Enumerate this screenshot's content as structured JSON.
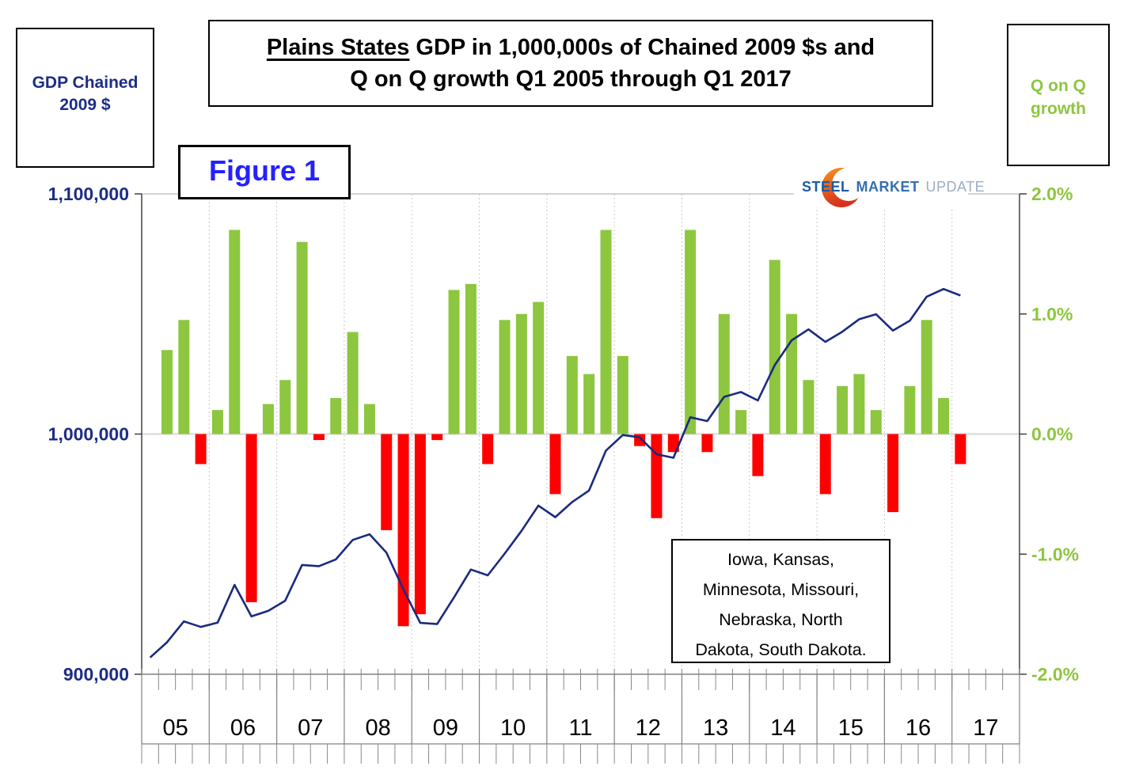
{
  "header": {
    "left_box": "GDP Chained\n2009 $",
    "right_box": "Q on Q\ngrowth",
    "figure_label": "Figure 1"
  },
  "title": {
    "part1": "Plains States",
    "part2": " GDP in 1,000,000s of Chained 2009 $s and",
    "line2": "Q on Q growth Q1 2005 through Q1 2017"
  },
  "logo": {
    "word1": "STEEL",
    "word2": "MARKET",
    "word3": "UPDATE"
  },
  "annotation": {
    "text": "Iowa, Kansas,\nMinnesota, Missouri,\nNebraska, North\nDakota, South Dakota."
  },
  "chart_data": {
    "type": "combo bar+line",
    "title": "Plains States GDP in 1,000,000s of Chained 2009 $s and Q on Q growth Q1 2005 through Q1 2017",
    "x_year_labels": [
      "05",
      "06",
      "07",
      "08",
      "09",
      "10",
      "11",
      "12",
      "13",
      "14",
      "15",
      "16",
      "17"
    ],
    "quarters": [
      "2005Q1",
      "2005Q2",
      "2005Q3",
      "2005Q4",
      "2006Q1",
      "2006Q2",
      "2006Q3",
      "2006Q4",
      "2007Q1",
      "2007Q2",
      "2007Q3",
      "2007Q4",
      "2008Q1",
      "2008Q2",
      "2008Q3",
      "2008Q4",
      "2009Q1",
      "2009Q2",
      "2009Q3",
      "2009Q4",
      "2010Q1",
      "2010Q2",
      "2010Q3",
      "2010Q4",
      "2011Q1",
      "2011Q2",
      "2011Q3",
      "2011Q4",
      "2012Q1",
      "2012Q2",
      "2012Q3",
      "2012Q4",
      "2013Q1",
      "2013Q2",
      "2013Q3",
      "2013Q4",
      "2014Q1",
      "2014Q2",
      "2014Q3",
      "2014Q4",
      "2015Q1",
      "2015Q2",
      "2015Q3",
      "2015Q4",
      "2016Q1",
      "2016Q2",
      "2016Q3",
      "2016Q4",
      "2017Q1"
    ],
    "bar_series": {
      "name": "Q on Q growth (%)",
      "axis": "right",
      "values": [
        null,
        0.7,
        0.95,
        -0.25,
        0.2,
        1.7,
        -1.4,
        0.25,
        0.45,
        1.6,
        -0.05,
        0.3,
        0.85,
        0.25,
        -0.8,
        -1.6,
        -1.5,
        -0.05,
        1.2,
        1.25,
        -0.25,
        0.95,
        1.0,
        1.1,
        -0.5,
        0.65,
        0.5,
        1.7,
        0.65,
        -0.1,
        -0.7,
        -0.15,
        1.7,
        -0.15,
        1.0,
        0.2,
        -0.35,
        1.45,
        1.0,
        0.45,
        -0.5,
        0.4,
        0.5,
        0.2,
        -0.65,
        0.4,
        0.95,
        0.3,
        -0.25
      ]
    },
    "line_series": {
      "name": "GDP Chained 2009 $ (1,000,000s)",
      "axis": "left",
      "values": [
        907000,
        913300,
        922000,
        919700,
        921500,
        937200,
        924100,
        926400,
        930600,
        945500,
        945000,
        947800,
        955900,
        958300,
        950600,
        935400,
        921400,
        920900,
        932000,
        943600,
        941200,
        950200,
        959700,
        970200,
        965400,
        971700,
        976500,
        993100,
        999600,
        998600,
        991600,
        990100,
        1007000,
        1005400,
        1015500,
        1017500,
        1014000,
        1028700,
        1039000,
        1043600,
        1038400,
        1042600,
        1047800,
        1049900,
        1043100,
        1047200,
        1057200,
        1060400,
        1057700
      ]
    },
    "left_axis": {
      "min": 900000,
      "max": 1100000,
      "tick_labels": [
        "1,100,000",
        "1,000,000",
        "900,000"
      ]
    },
    "right_axis": {
      "min": -2.0,
      "max": 2.0,
      "tick_labels": [
        "2.0%",
        "1.0%",
        "0.0%",
        "-1.0%",
        "-2.0%"
      ]
    },
    "grid": "vertical dotted per year, light zero line",
    "legend_position": "outer boxes (left: GDP line, right: growth bars)",
    "colors": {
      "bar_positive": "#8dc63f",
      "bar_negative": "#fe0000",
      "line": "#1b2a7f",
      "left_labels": "#1c2d87",
      "right_labels": "#8dc63f"
    }
  }
}
